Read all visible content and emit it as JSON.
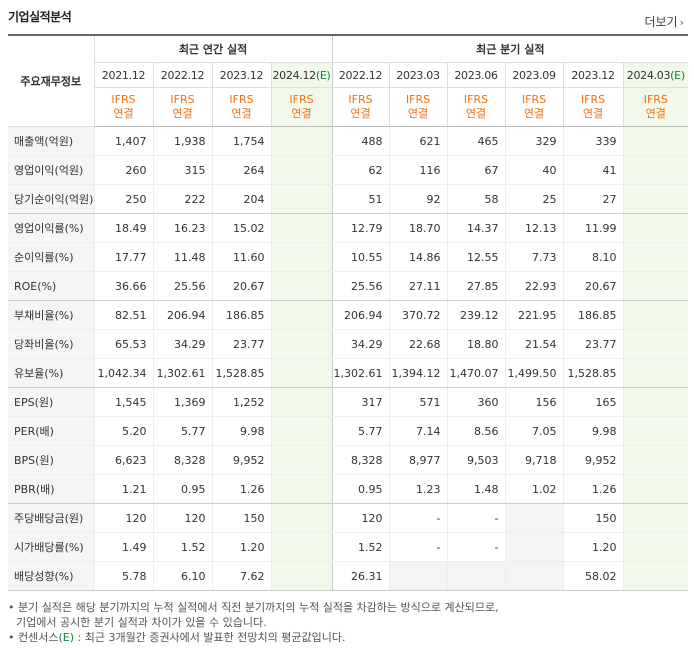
{
  "header": {
    "title": "기업실적분석",
    "more_label": "더보기",
    "more_icon": "chevron-right-icon"
  },
  "table": {
    "row_label_header": "주요재무정보",
    "annual_header": "최근 연간 실적",
    "quarter_header": "최근 분기 실적",
    "annual_years": [
      {
        "label": "2021.12",
        "est": false
      },
      {
        "label": "2022.12",
        "est": false
      },
      {
        "label": "2023.12",
        "est": false
      },
      {
        "label": "2024.12",
        "est": true,
        "suffix": "(E)"
      }
    ],
    "quarter_years": [
      {
        "label": "2022.12",
        "est": false
      },
      {
        "label": "2023.03",
        "est": false
      },
      {
        "label": "2023.06",
        "est": false
      },
      {
        "label": "2023.09",
        "est": false
      },
      {
        "label": "2023.12",
        "est": false
      },
      {
        "label": "2024.03",
        "est": true,
        "suffix": "(E)"
      }
    ],
    "ifrs_top": "IFRS",
    "ifrs_bottom": "연결",
    "rows": [
      {
        "label": "매출액(억원)",
        "annual": [
          "1,407",
          "1,938",
          "1,754",
          ""
        ],
        "quarter": [
          "488",
          "621",
          "465",
          "329",
          "339",
          ""
        ],
        "grp_end": false
      },
      {
        "label": "영업이익(억원)",
        "annual": [
          "260",
          "315",
          "264",
          ""
        ],
        "quarter": [
          "62",
          "116",
          "67",
          "40",
          "41",
          ""
        ],
        "grp_end": false
      },
      {
        "label": "당기순이익(억원)",
        "annual": [
          "250",
          "222",
          "204",
          ""
        ],
        "quarter": [
          "51",
          "92",
          "58",
          "25",
          "27",
          ""
        ],
        "grp_end": true
      },
      {
        "label": "영업이익률(%)",
        "annual": [
          "18.49",
          "16.23",
          "15.02",
          ""
        ],
        "quarter": [
          "12.79",
          "18.70",
          "14.37",
          "12.13",
          "11.99",
          ""
        ],
        "grp_end": false
      },
      {
        "label": "순이익률(%)",
        "annual": [
          "17.77",
          "11.48",
          "11.60",
          ""
        ],
        "quarter": [
          "10.55",
          "14.86",
          "12.55",
          "7.73",
          "8.10",
          ""
        ],
        "grp_end": false
      },
      {
        "label": "ROE(%)",
        "annual": [
          "36.66",
          "25.56",
          "20.67",
          ""
        ],
        "quarter": [
          "25.56",
          "27.11",
          "27.85",
          "22.93",
          "20.67",
          ""
        ],
        "grp_end": true
      },
      {
        "label": "부채비율(%)",
        "annual": [
          "82.51",
          "206.94",
          "186.85",
          ""
        ],
        "quarter": [
          "206.94",
          "370.72",
          "239.12",
          "221.95",
          "186.85",
          ""
        ],
        "grp_end": false
      },
      {
        "label": "당좌비율(%)",
        "annual": [
          "65.53",
          "34.29",
          "23.77",
          ""
        ],
        "quarter": [
          "34.29",
          "22.68",
          "18.80",
          "21.54",
          "23.77",
          ""
        ],
        "grp_end": false
      },
      {
        "label": "유보율(%)",
        "annual": [
          "1,042.34",
          "1,302.61",
          "1,528.85",
          ""
        ],
        "quarter": [
          "1,302.61",
          "1,394.12",
          "1,470.07",
          "1,499.50",
          "1,528.85",
          ""
        ],
        "grp_end": true
      },
      {
        "label": "EPS(원)",
        "annual": [
          "1,545",
          "1,369",
          "1,252",
          ""
        ],
        "quarter": [
          "317",
          "571",
          "360",
          "156",
          "165",
          ""
        ],
        "grp_end": false
      },
      {
        "label": "PER(배)",
        "annual": [
          "5.20",
          "5.77",
          "9.98",
          ""
        ],
        "quarter": [
          "5.77",
          "7.14",
          "8.56",
          "7.05",
          "9.98",
          ""
        ],
        "grp_end": false
      },
      {
        "label": "BPS(원)",
        "annual": [
          "6,623",
          "8,328",
          "9,952",
          ""
        ],
        "quarter": [
          "8,328",
          "8,977",
          "9,503",
          "9,718",
          "9,952",
          ""
        ],
        "grp_end": false
      },
      {
        "label": "PBR(배)",
        "annual": [
          "1.21",
          "0.95",
          "1.26",
          ""
        ],
        "quarter": [
          "0.95",
          "1.23",
          "1.48",
          "1.02",
          "1.26",
          ""
        ],
        "grp_end": true
      },
      {
        "label": "주당배당금(원)",
        "annual": [
          "120",
          "120",
          "150",
          ""
        ],
        "quarter": [
          "120",
          "-",
          "-",
          "",
          "150",
          ""
        ],
        "grp_end": false
      },
      {
        "label": "시가배당률(%)",
        "annual": [
          "1.49",
          "1.52",
          "1.20",
          ""
        ],
        "quarter": [
          "1.52",
          "-",
          "-",
          "",
          "1.20",
          ""
        ],
        "grp_end": false
      },
      {
        "label": "배당성향(%)",
        "annual": [
          "5.78",
          "6.10",
          "7.62",
          ""
        ],
        "quarter": [
          "26.31",
          "",
          "",
          "",
          "58.02",
          ""
        ],
        "grp_end": true
      }
    ],
    "empty_quarter_cells": [
      [
        13,
        3
      ],
      [
        14,
        3
      ],
      [
        15,
        1
      ],
      [
        15,
        2
      ],
      [
        15,
        3
      ]
    ]
  },
  "footer": {
    "note1": "분기 실적은 해당 분기까지의 누적 실적에서 직전 분기까지의 누적 실적을 차감하는 방식으로 계산되므로,",
    "note2": "기업에서 공시한 분기 실적과 차이가 있을 수 있습니다.",
    "note3_pre": "컨센서스",
    "note3_e": "(E)",
    "note3_post": " : 최근 3개월간 증권사에서 발표한 전망치의 평균값입니다."
  },
  "colors": {
    "ifrs": "#f47010",
    "estimate_bg": "#f2f8ea",
    "estimate_e": "#0a8a3a",
    "label_bg": "#f5f5f5"
  }
}
